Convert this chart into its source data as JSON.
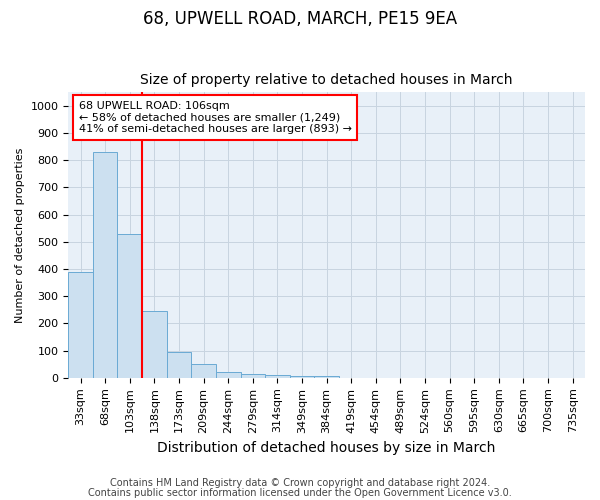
{
  "title": "68, UPWELL ROAD, MARCH, PE15 9EA",
  "subtitle": "Size of property relative to detached houses in March",
  "xlabel": "Distribution of detached houses by size in March",
  "ylabel": "Number of detached properties",
  "categories": [
    "33sqm",
    "68sqm",
    "103sqm",
    "138sqm",
    "173sqm",
    "209sqm",
    "244sqm",
    "279sqm",
    "314sqm",
    "349sqm",
    "384sqm",
    "419sqm",
    "454sqm",
    "489sqm",
    "524sqm",
    "560sqm",
    "595sqm",
    "630sqm",
    "665sqm",
    "700sqm",
    "735sqm"
  ],
  "values": [
    390,
    830,
    530,
    245,
    95,
    50,
    22,
    15,
    10,
    8,
    8,
    0,
    0,
    0,
    0,
    0,
    0,
    0,
    0,
    0,
    0
  ],
  "bar_color": "#cce0f0",
  "bar_edge_color": "#6aaad4",
  "vline_x_index": 2,
  "annotation_line1": "68 UPWELL ROAD: 106sqm",
  "annotation_line2": "← 58% of detached houses are smaller (1,249)",
  "annotation_line3": "41% of semi-detached houses are larger (893) →",
  "annotation_box_facecolor": "white",
  "annotation_box_edgecolor": "red",
  "vline_color": "red",
  "ylim": [
    0,
    1050
  ],
  "yticks": [
    0,
    100,
    200,
    300,
    400,
    500,
    600,
    700,
    800,
    900,
    1000
  ],
  "footer_line1": "Contains HM Land Registry data © Crown copyright and database right 2024.",
  "footer_line2": "Contains public sector information licensed under the Open Government Licence v3.0.",
  "background_color": "#ffffff",
  "plot_bg_color": "#e8f0f8",
  "grid_color": "#c8d4e0",
  "title_fontsize": 12,
  "subtitle_fontsize": 10,
  "xlabel_fontsize": 10,
  "ylabel_fontsize": 8,
  "tick_fontsize": 8,
  "annotation_fontsize": 8,
  "footer_fontsize": 7
}
